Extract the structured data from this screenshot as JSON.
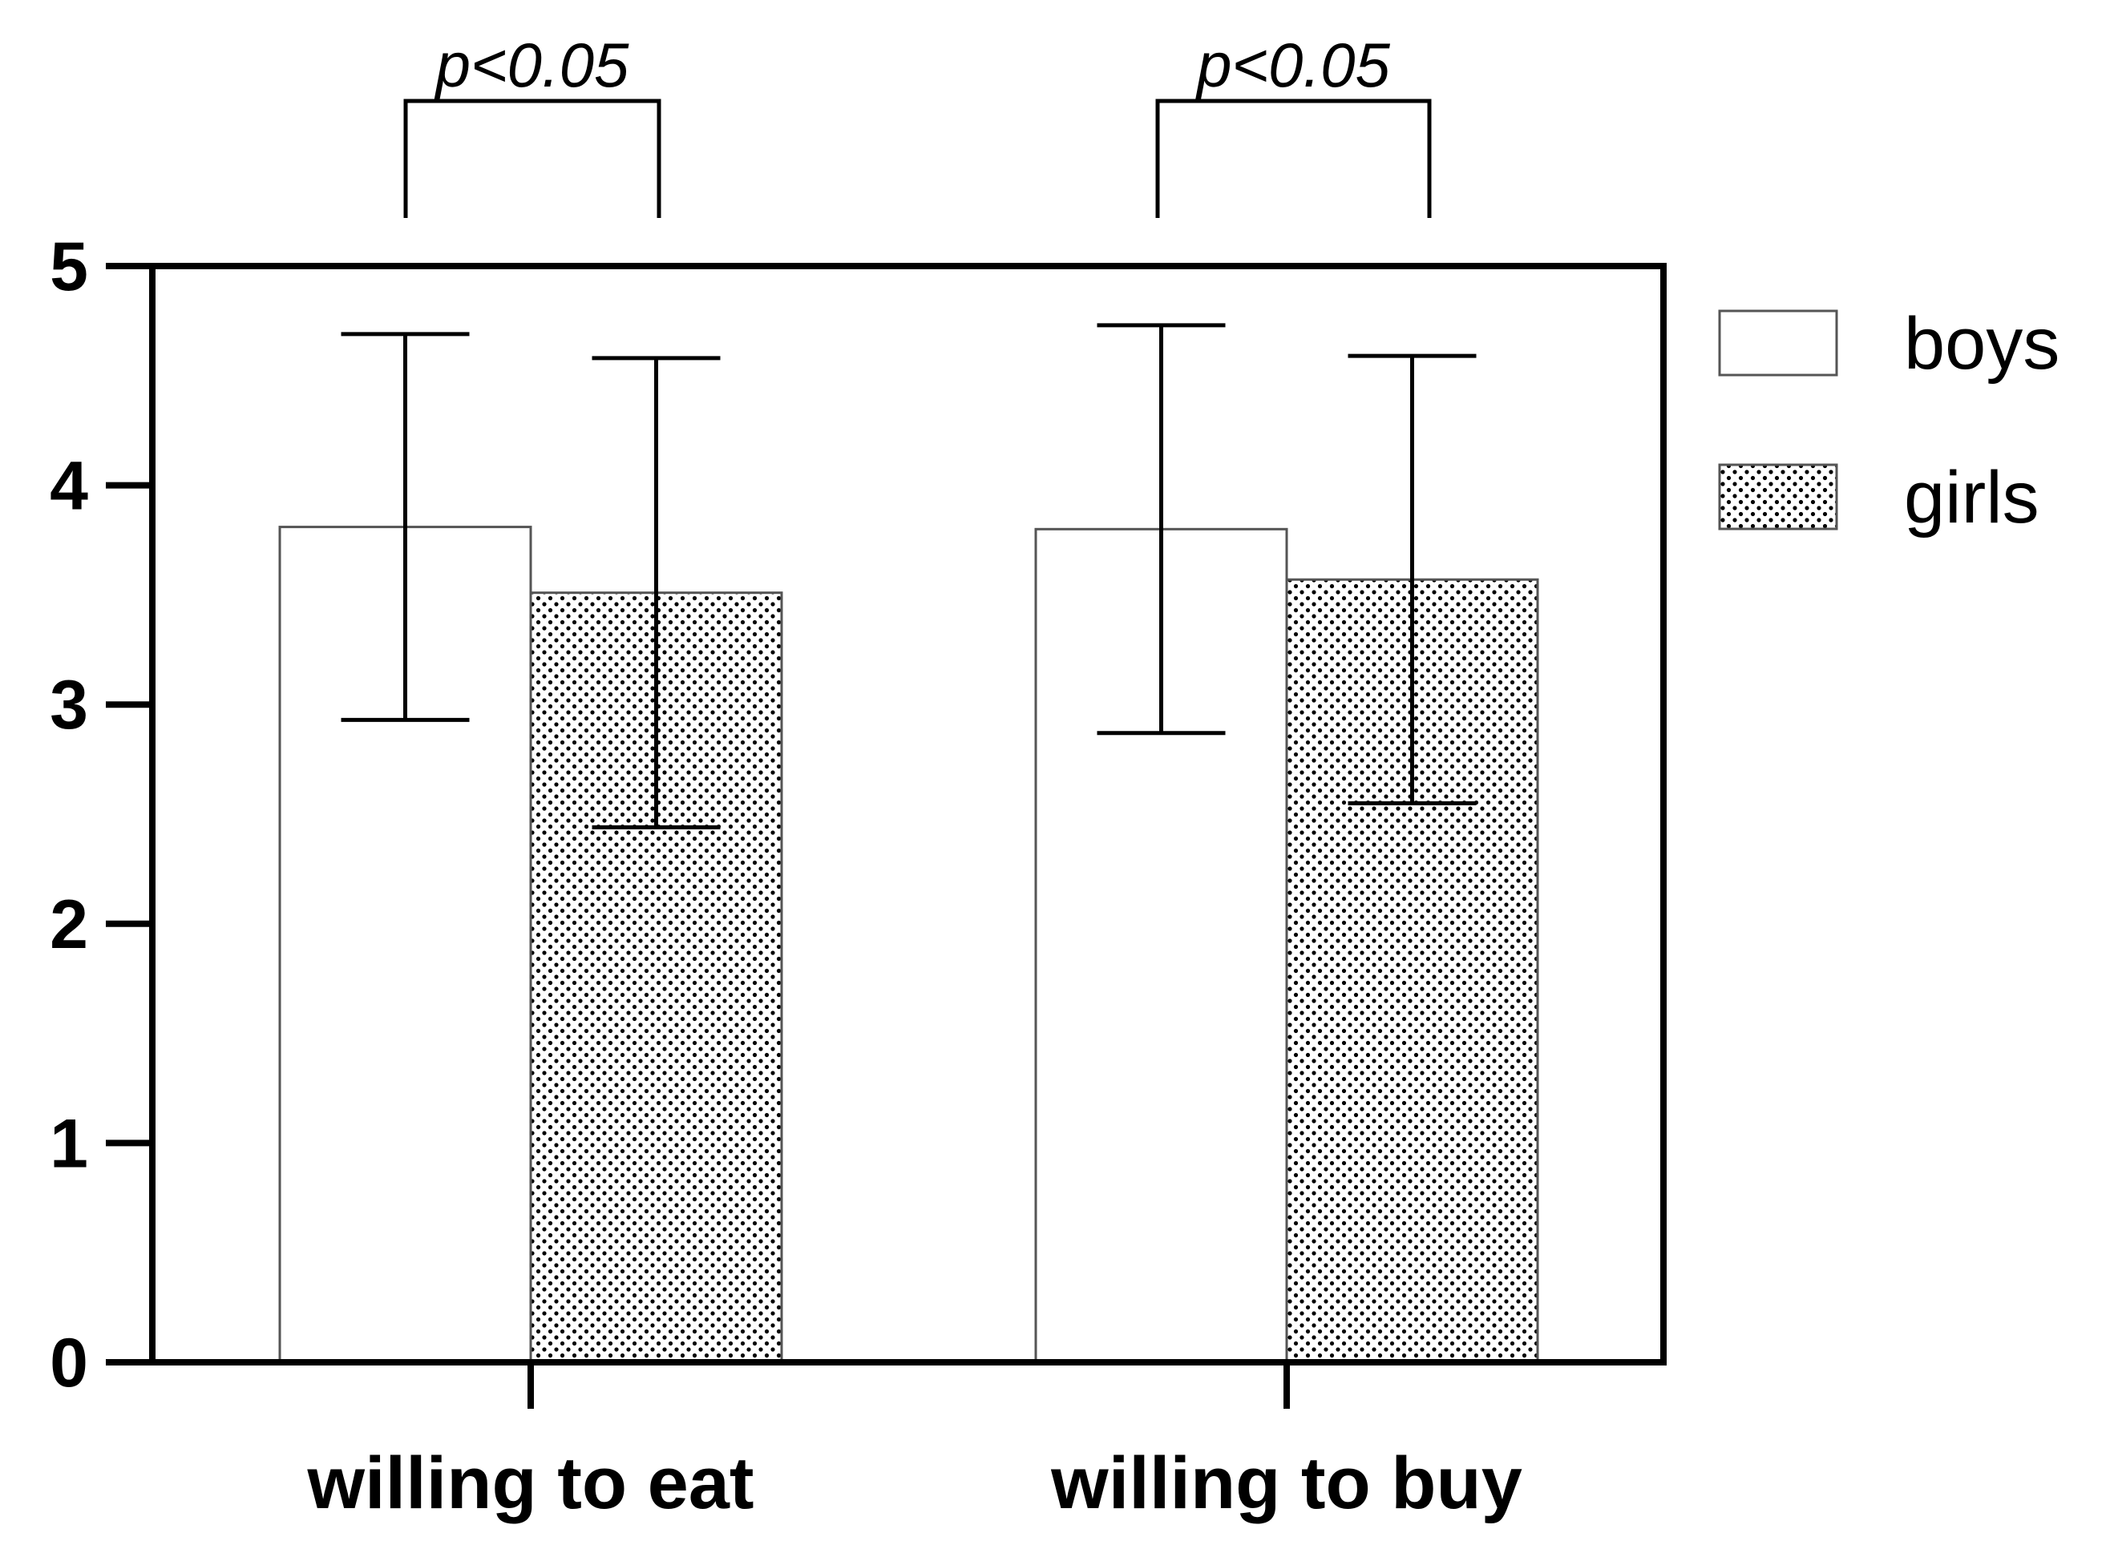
{
  "chart_data": {
    "type": "bar",
    "categories": [
      "willing to eat",
      "willing to buy"
    ],
    "series": [
      {
        "name": "boys",
        "values": [
          3.81,
          3.8
        ],
        "error": [
          0.88,
          0.93
        ],
        "pattern": "plain"
      },
      {
        "name": "girls",
        "values": [
          3.51,
          3.57
        ],
        "error": [
          1.07,
          1.02
        ],
        "pattern": "dots"
      }
    ],
    "ylim": [
      0,
      5
    ],
    "yticks": [
      "0",
      "1",
      "2",
      "3",
      "4",
      "5"
    ],
    "annotations": [
      "p<0.05",
      "p<0.05"
    ],
    "legend_position": "right",
    "grid": false,
    "colors": {
      "bar_fill": "#ffffff",
      "dot": "#000000",
      "stroke": "#000000"
    }
  }
}
